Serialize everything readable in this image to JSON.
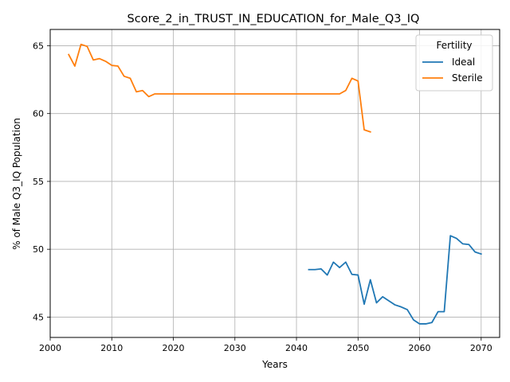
{
  "chart_data": {
    "type": "line",
    "title": "Score_2_in_TRUST_IN_EDUCATION_for_Male_Q3_IQ",
    "xlabel": "Years",
    "ylabel": "% of Male Q3_IQ Population",
    "xlim": [
      2000,
      2073
    ],
    "ylim": [
      43.5,
      66.2
    ],
    "xticks": [
      2000,
      2010,
      2020,
      2030,
      2040,
      2050,
      2060,
      2070
    ],
    "yticks": [
      45,
      50,
      55,
      60,
      65
    ],
    "grid": true,
    "legend": {
      "title": "Fertility",
      "position": "top-right"
    },
    "series": [
      {
        "name": "Ideal",
        "color": "#1f77b4",
        "x": [
          2042,
          2043,
          2044,
          2045,
          2046,
          2047,
          2048,
          2049,
          2050,
          2051,
          2052,
          2053,
          2054,
          2055,
          2056,
          2057,
          2058,
          2059,
          2060,
          2061,
          2062,
          2063,
          2064,
          2065,
          2066,
          2067,
          2068,
          2069,
          2070
        ],
        "y": [
          48.5,
          48.5,
          48.55,
          48.1,
          49.05,
          48.65,
          49.05,
          48.15,
          48.1,
          45.95,
          47.75,
          46.05,
          46.5,
          46.2,
          45.9,
          45.75,
          45.55,
          44.8,
          44.5,
          44.5,
          44.6,
          45.4,
          45.4,
          51.0,
          50.8,
          50.4,
          50.35,
          49.8,
          49.65
        ]
      },
      {
        "name": "Sterile",
        "color": "#ff7f0e",
        "x": [
          2003,
          2004,
          2005,
          2006,
          2007,
          2008,
          2009,
          2010,
          2011,
          2012,
          2013,
          2014,
          2015,
          2016,
          2017,
          2018,
          2019,
          2020,
          2025,
          2030,
          2035,
          2040,
          2045,
          2047,
          2048,
          2049,
          2050,
          2051,
          2052
        ],
        "y": [
          64.35,
          63.5,
          65.1,
          64.95,
          63.95,
          64.05,
          63.85,
          63.55,
          63.5,
          62.75,
          62.6,
          61.6,
          61.7,
          61.25,
          61.45,
          61.45,
          61.45,
          61.45,
          61.45,
          61.45,
          61.45,
          61.45,
          61.45,
          61.45,
          61.7,
          62.6,
          62.4,
          58.8,
          58.65
        ]
      }
    ]
  }
}
